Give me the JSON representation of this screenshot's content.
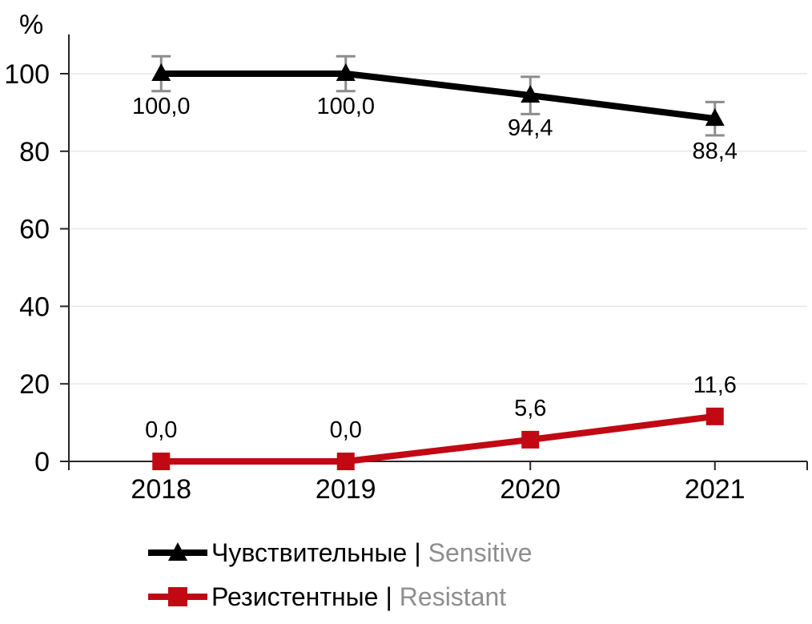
{
  "figure": {
    "ylabel_symbol": "%"
  },
  "colors": {
    "sensitive_series": "#000000",
    "resistant_series": "#C10813",
    "error_bar": "#8C8C8C",
    "gridline": "#E7E7E7",
    "axis": "#262626",
    "label_text": "#000000",
    "secondary_text": "#8E8E8E"
  },
  "legend": {
    "separator": "|",
    "items": [
      {
        "label_ru": "Чувствительные",
        "label_en": "Sensitive"
      },
      {
        "label_ru": "Резистентные",
        "label_en": "Resistant"
      }
    ]
  },
  "chart_data": {
    "type": "line",
    "title": "",
    "xlabel": "",
    "ylabel": "%",
    "categories": [
      "2018",
      "2019",
      "2020",
      "2021"
    ],
    "yticks": [
      0,
      20,
      40,
      60,
      80,
      100
    ],
    "ylim": [
      0,
      110
    ],
    "grid": true,
    "legend_position": "bottom-left",
    "series": [
      {
        "name": "Чувствительные | Sensitive",
        "color": "#000000",
        "marker": "triangle",
        "values": [
          100.0,
          100.0,
          94.4,
          88.4
        ],
        "data_labels": [
          "100,0",
          "100,0",
          "94,4",
          "88,4"
        ],
        "label_side": "below",
        "error_bars": [
          4.5,
          4.5,
          4.8,
          4.3
        ]
      },
      {
        "name": "Резистентные | Resistant",
        "color": "#C10813",
        "marker": "square",
        "values": [
          0.0,
          0.0,
          5.6,
          11.6
        ],
        "data_labels": [
          "0,0",
          "0,0",
          "5,6",
          "11,6"
        ],
        "label_side": "above",
        "error_bars": [
          0,
          0,
          0,
          0
        ]
      }
    ]
  }
}
